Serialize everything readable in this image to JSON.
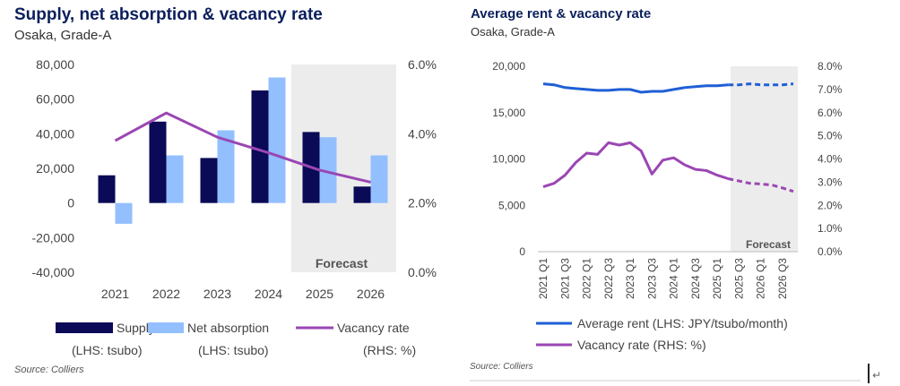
{
  "colors": {
    "supply": "#0a0a56",
    "net_absorption": "#93bfff",
    "vacancy": "#9b46b4",
    "rent": "#1f5fd6",
    "forecast_bg": "#ececec",
    "title": "#0b1f5c"
  },
  "chart_data": [
    {
      "type": "bar",
      "title": "Supply, net absorption & vacancy rate",
      "subtitle": "Osaka, Grade-A",
      "categories": [
        "2021",
        "2022",
        "2023",
        "2024",
        "2025",
        "2026"
      ],
      "series": [
        {
          "name": "Supply",
          "values": [
            16000,
            47000,
            26000,
            65000,
            41000,
            9500
          ]
        },
        {
          "name": "Net absorption",
          "values": [
            -12000,
            27500,
            42000,
            72500,
            38000,
            27500
          ]
        },
        {
          "name": "Vacancy rate",
          "type": "line",
          "axis": "right",
          "values": [
            3.8,
            4.6,
            3.9,
            3.45,
            2.95,
            2.6
          ]
        }
      ],
      "left_axis": {
        "ylim": [
          -40000,
          80000
        ],
        "ticks": [
          "-40,000",
          "-20,000",
          "0",
          "20,000",
          "40,000",
          "60,000",
          "80,000"
        ]
      },
      "right_axis": {
        "ylim": [
          0,
          6
        ],
        "ticks": [
          "0.0%",
          "2.0%",
          "4.0%",
          "6.0%"
        ]
      },
      "forecast_label": "Forecast",
      "legend": [
        {
          "label": "Supply",
          "sub": "(LHS: tsubo)"
        },
        {
          "label": "Net absorption",
          "sub": "(LHS: tsubo)"
        },
        {
          "label": "Vacancy rate",
          "sub": "(RHS: %)"
        }
      ],
      "source": "Source: Colliers"
    },
    {
      "type": "line",
      "title": "Average rent & vacancy rate",
      "subtitle": "Osaka, Grade-A",
      "x": [
        "2021 Q1",
        "2021 Q2",
        "2021 Q3",
        "2021 Q4",
        "2022 Q1",
        "2022 Q2",
        "2022 Q3",
        "2022 Q4",
        "2023 Q1",
        "2023 Q2",
        "2023 Q3",
        "2023 Q4",
        "2024 Q1",
        "2024 Q2",
        "2024 Q3",
        "2024 Q4",
        "2025 Q1",
        "2025 Q2",
        "2025 Q3",
        "2025 Q4",
        "2026 Q1",
        "2026 Q2",
        "2026 Q3",
        "2026 Q4"
      ],
      "tick_labels": [
        "2021 Q1",
        "2021 Q3",
        "2022 Q1",
        "2022 Q3",
        "2023 Q1",
        "2023 Q3",
        "2024 Q1",
        "2024 Q3",
        "2025 Q1",
        "2025 Q3",
        "2026 Q1",
        "2026 Q3"
      ],
      "series": [
        {
          "name": "Average rent",
          "axis": "left",
          "values": [
            18100,
            18000,
            17700,
            17600,
            17500,
            17400,
            17400,
            17500,
            17500,
            17200,
            17300,
            17300,
            17500,
            17700,
            17800,
            17900,
            17900,
            18000,
            18000,
            18100,
            18000,
            18000,
            18000,
            18100
          ]
        },
        {
          "name": "Vacancy rate",
          "axis": "right",
          "values": [
            2.8,
            2.95,
            3.3,
            3.85,
            4.25,
            4.2,
            4.7,
            4.6,
            4.7,
            4.35,
            3.35,
            3.95,
            4.05,
            3.75,
            3.55,
            3.5,
            3.3,
            3.15,
            3.05,
            2.95,
            2.92,
            2.88,
            2.75,
            2.6
          ]
        }
      ],
      "forecast_start_index": 17,
      "left_axis": {
        "ylim": [
          0,
          20000
        ],
        "ticks": [
          "0",
          "5,000",
          "10,000",
          "15,000",
          "20,000"
        ]
      },
      "right_axis": {
        "ylim": [
          0,
          8
        ],
        "ticks": [
          "0.0%",
          "1.0%",
          "2.0%",
          "3.0%",
          "4.0%",
          "5.0%",
          "6.0%",
          "7.0%",
          "8.0%"
        ]
      },
      "forecast_label": "Forecast",
      "legend": [
        "Average rent (LHS: JPY/tsubo/month)",
        "Vacancy rate (RHS: %)"
      ],
      "source": "Source: Colliers"
    }
  ]
}
